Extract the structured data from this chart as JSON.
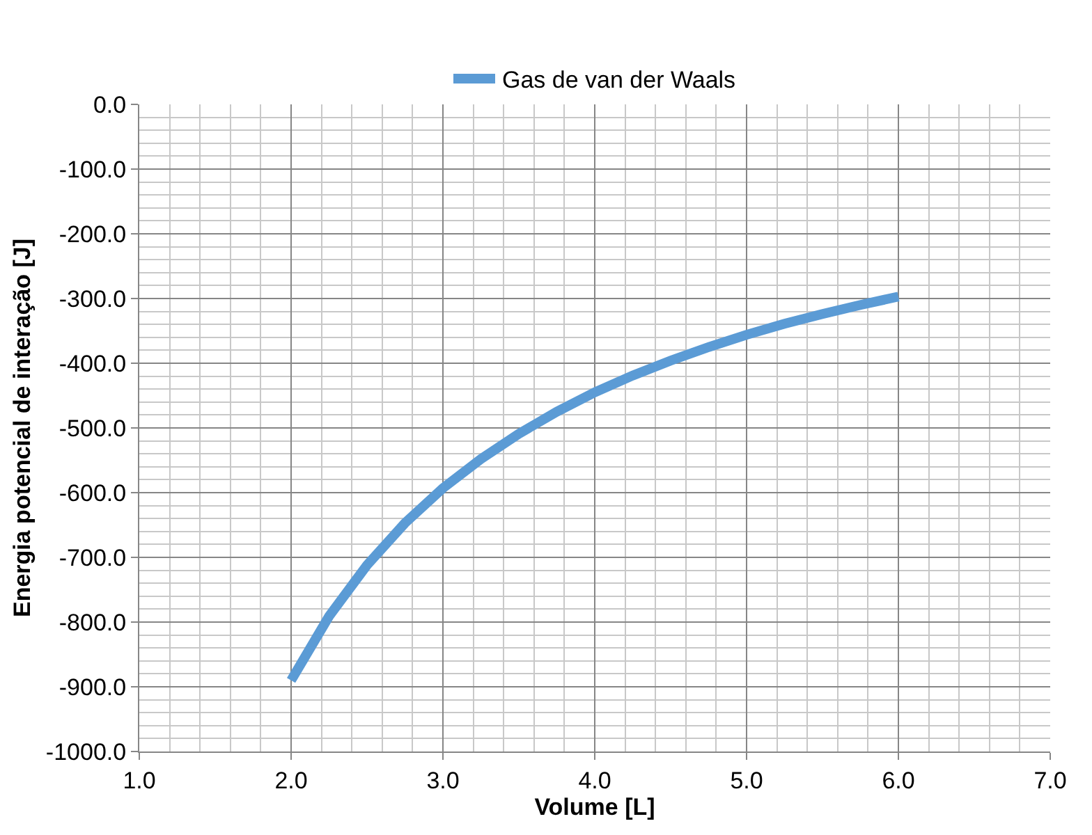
{
  "chart_data": {
    "type": "line",
    "xlabel": "Volume [L]",
    "ylabel": "Energia potencial de interação [J]",
    "x": [
      2.0,
      2.25,
      2.5,
      2.75,
      3.0,
      3.25,
      3.5,
      3.75,
      4.0,
      4.25,
      4.5,
      4.75,
      5.0,
      5.25,
      5.5,
      5.75,
      6.0
    ],
    "series": [
      {
        "name": "Gas de van der Waals",
        "color": "#5b9bd5",
        "values": [
          -890,
          -791,
          -712,
          -647,
          -593,
          -548,
          -509,
          -475,
          -445,
          -419,
          -396,
          -375,
          -356,
          -339,
          -324,
          -310,
          -297
        ]
      }
    ],
    "xlim": [
      1.0,
      7.0
    ],
    "xticks": [
      {
        "value": 1.0,
        "label": "1.0"
      },
      {
        "value": 2.0,
        "label": "2.0"
      },
      {
        "value": 3.0,
        "label": "3.0"
      },
      {
        "value": 4.0,
        "label": "4.0"
      },
      {
        "value": 5.0,
        "label": "5.0"
      },
      {
        "value": 6.0,
        "label": "6.0"
      },
      {
        "value": 7.0,
        "label": "7.0"
      }
    ],
    "ylim": [
      -1000,
      0
    ],
    "yticks": [
      {
        "value": 0,
        "label": "0.0"
      },
      {
        "value": -100,
        "label": "-100.0"
      },
      {
        "value": -200,
        "label": "-200.0"
      },
      {
        "value": -300,
        "label": "-300.0"
      },
      {
        "value": -400,
        "label": "-400.0"
      },
      {
        "value": -500,
        "label": "-500.0"
      },
      {
        "value": -600,
        "label": "-600.0"
      },
      {
        "value": -700,
        "label": "-700.0"
      },
      {
        "value": -800,
        "label": "-800.0"
      },
      {
        "value": -900,
        "label": "-900.0"
      },
      {
        "value": -1000,
        "label": "-1000.0"
      }
    ],
    "grid": true,
    "legend": "top",
    "marker": "none",
    "line_style": "solid"
  }
}
